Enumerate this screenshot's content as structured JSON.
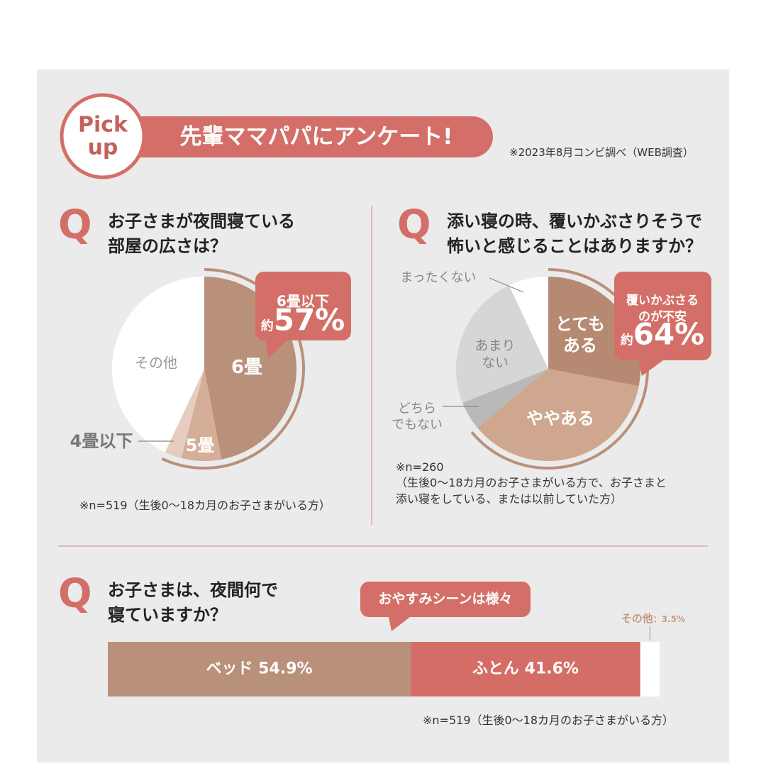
{
  "header": {
    "badge": "Pick\nup",
    "title": "先輩ママパパにアンケート!",
    "source": "※2023年8月コンビ調べ（WEB調査）"
  },
  "chart_data": [
    {
      "type": "pie",
      "marker": "Q",
      "title": "お子さまが夜間寝ている\n部屋の広さは？",
      "categories": [
        "6畳",
        "5畳",
        "4畳以下",
        "その他"
      ],
      "values": [
        47,
        7,
        3,
        43
      ],
      "colors": [
        "#b9907a",
        "#d4ae99",
        "#e6cdbf",
        "#ffffff"
      ],
      "callout": {
        "text": "6畳以下",
        "prefix": "約",
        "value_label": "57%"
      },
      "note": "※n=519（生後0〜18カ月のお子さまがいる方）"
    },
    {
      "type": "pie",
      "marker": "Q",
      "title": "添い寝の時、覆いかぶさりそうで\n怖いと感じることはありますか？",
      "categories": [
        "とても\nある",
        "ややある",
        "どちら\nでもない",
        "あまり\nない",
        "まったくない"
      ],
      "values": [
        28,
        36,
        5,
        24,
        7
      ],
      "colors": [
        "#b68a72",
        "#cfa78e",
        "#b9b9b9",
        "#d6d6d6",
        "#ffffff"
      ],
      "callout": {
        "text": "覆いかぶさる\nのが不安",
        "prefix": "約",
        "value_label": "64%"
      },
      "note": "※n=260\n（生後0〜18カ月のお子さまがいる方で、お子さまと\n添い寝をしている、または以前していた方）"
    },
    {
      "type": "bar",
      "orientation": "horizontal",
      "stacked": true,
      "marker": "Q",
      "title": "お子さまは、夜間何で\n寝ていますか？",
      "callout": {
        "text": "おやすみシーンは様々"
      },
      "xlim": [
        0,
        100
      ],
      "series": [
        {
          "name": "ベッド",
          "color": "#b9907a",
          "values": [
            54.9
          ],
          "value_labels": [
            "54.9%"
          ]
        },
        {
          "name": "ふとん",
          "color": "#d46d66",
          "values": [
            41.6
          ],
          "value_labels": [
            "41.6%"
          ]
        },
        {
          "name": "その他",
          "color": "#ffffff",
          "values": [
            3.5
          ],
          "value_labels": [
            "：3.5%"
          ]
        }
      ],
      "note": "※n=519（生後0〜18カ月のお子さまがいる方）"
    }
  ]
}
